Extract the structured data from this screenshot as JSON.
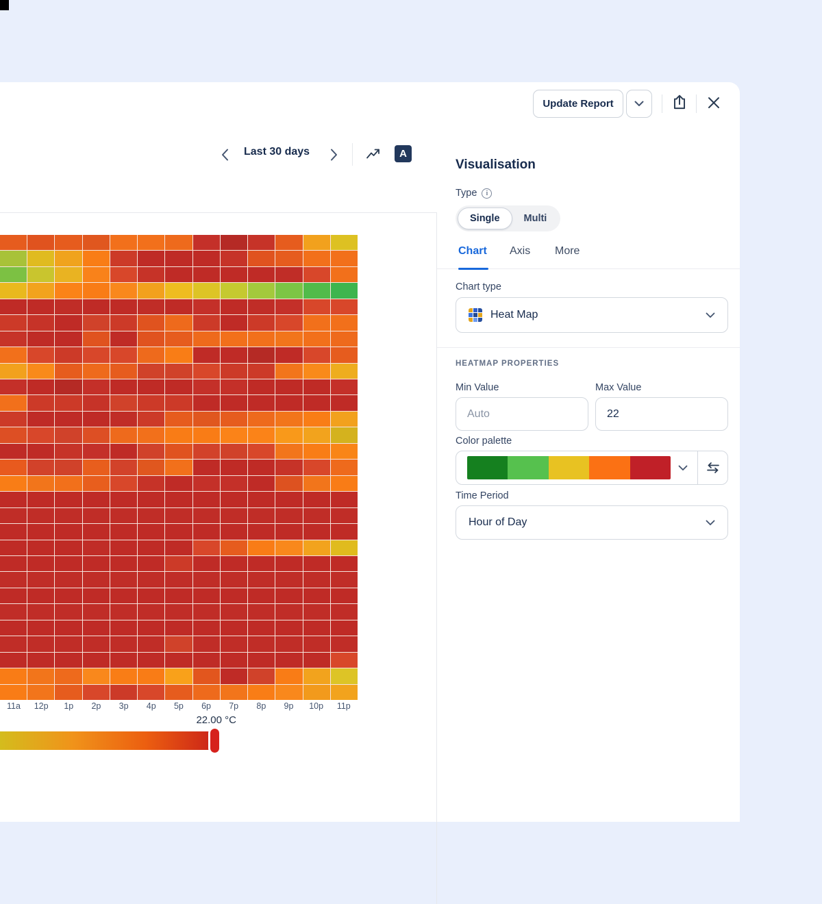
{
  "toolbar": {
    "update_report_label": "Update Report"
  },
  "chart_nav": {
    "range_label": "Last 30 days",
    "annotation_icon_letter": "A"
  },
  "panel": {
    "title": "Visualisation",
    "type_label": "Type",
    "info_icon_glyph": "i",
    "type_options": [
      "Single",
      "Multi"
    ],
    "type_selected": "Single",
    "tabs": [
      "Chart",
      "Axis",
      "More"
    ],
    "active_tab": "Chart",
    "chart_type_label": "Chart type",
    "chart_type_value": "Heat Map",
    "section_header": "HEATMAP PROPERTIES",
    "min_value_label": "Min Value",
    "min_value_placeholder": "Auto",
    "max_value_label": "Max Value",
    "max_value": "22",
    "color_palette_label": "Color palette",
    "palette_colors": [
      "#15801f",
      "#56c14e",
      "#e8c222",
      "#fb7114",
      "#c02028"
    ],
    "time_period_label": "Time Period",
    "time_period_value": "Hour of Day"
  },
  "accent_colors": {
    "tab_active_blue": "#1868db",
    "text_dark": "#172b4d",
    "text_secondary": "#44546f"
  },
  "chart_data": {
    "type": "heatmap",
    "x_labels": [
      "11a",
      "12p",
      "1p",
      "2p",
      "3p",
      "4p",
      "5p",
      "6p",
      "7p",
      "8p",
      "9p",
      "10p",
      "11p"
    ],
    "value_label": "22.00 °C",
    "legend_gradient": [
      "#d4bc1d",
      "#f0931a",
      "#ec5f10",
      "#c92019"
    ],
    "cell_colors": [
      [
        "#e65c1e",
        "#e0531f",
        "#e65c1e",
        "#e0571f",
        "#f2701b",
        "#f2701b",
        "#ee6a1c",
        "#c43029",
        "#b52a25",
        "#c63328",
        "#e65c1e",
        "#f2a11d",
        "#ddc122"
      ],
      [
        "#a8c239",
        "#e0bb20",
        "#f0a31d",
        "#f97d16",
        "#cc3a28",
        "#bf2b26",
        "#bf2b26",
        "#bf2b26",
        "#c63328",
        "#e0531f",
        "#e65c1e",
        "#f2701b",
        "#f2701b"
      ],
      [
        "#7cc143",
        "#c9c52e",
        "#e9b322",
        "#f9821a",
        "#d8472a",
        "#c63328",
        "#bf2b26",
        "#bf2b26",
        "#bf2b26",
        "#bf2b26",
        "#c02d27",
        "#d8472a",
        "#f2701b"
      ],
      [
        "#e9b91e",
        "#f2a31d",
        "#fb8318",
        "#f97c16",
        "#f9881c",
        "#f2a11d",
        "#eebd20",
        "#ddc426",
        "#c5c930",
        "#a3c93c",
        "#7cc545",
        "#52bb4a",
        "#3eb54e"
      ],
      [
        "#bf2b26",
        "#bf2b26",
        "#c02d27",
        "#bf2b26",
        "#bf2b26",
        "#c02d27",
        "#bf2b26",
        "#c43029",
        "#bf2b26",
        "#c02d27",
        "#c43029",
        "#d8472a",
        "#d8472a"
      ],
      [
        "#cc3a28",
        "#c63328",
        "#bf2b26",
        "#d0422a",
        "#cc3a28",
        "#e0531f",
        "#ee6a1c",
        "#cc3a28",
        "#bf2b26",
        "#cc3a28",
        "#d8472a",
        "#f2701b",
        "#f2701b"
      ],
      [
        "#c63328",
        "#bf2b26",
        "#bf2b26",
        "#e0531f",
        "#bf2b26",
        "#e0531f",
        "#e65c1e",
        "#ee6a1c",
        "#f2701b",
        "#f2701b",
        "#f2751b",
        "#f2701b",
        "#ee6a1c"
      ],
      [
        "#f2701b",
        "#d8472a",
        "#cc3a28",
        "#d8472a",
        "#d8472a",
        "#ee6a1c",
        "#f97d16",
        "#bf2b26",
        "#bf2b26",
        "#b52a25",
        "#bf2b26",
        "#d8472a",
        "#e65c1e"
      ],
      [
        "#f2a11d",
        "#f98a1a",
        "#e65c1e",
        "#ee6a1c",
        "#e65c1e",
        "#d0422a",
        "#d0422a",
        "#d8472a",
        "#cc3a28",
        "#cc3a28",
        "#f2751b",
        "#f98a1a",
        "#eead1e"
      ],
      [
        "#c43029",
        "#bf2b26",
        "#b52a25",
        "#c43029",
        "#bf2b26",
        "#bf2b26",
        "#bf2b26",
        "#c43029",
        "#c43029",
        "#bf2b26",
        "#bf2b26",
        "#bf2b26",
        "#c43029"
      ],
      [
        "#f2701b",
        "#cc3a28",
        "#cc3a28",
        "#c63328",
        "#d0422a",
        "#cc3a28",
        "#cc3a28",
        "#bf2b26",
        "#bf2b26",
        "#bf2b26",
        "#bf2b26",
        "#bf2b26",
        "#bf2b26"
      ],
      [
        "#cc3a28",
        "#bf2b26",
        "#bf2b26",
        "#bf2b26",
        "#c02d27",
        "#cc3a28",
        "#e65c1e",
        "#e0571f",
        "#e65c1e",
        "#ee6a1c",
        "#f2751b",
        "#f97d16",
        "#f2a11d"
      ],
      [
        "#dd4f24",
        "#d8472a",
        "#d0422a",
        "#dd4f24",
        "#ee6a1c",
        "#f2701b",
        "#f97c16",
        "#f97c16",
        "#fb8318",
        "#fb8318",
        "#f9991a",
        "#f2a31d",
        "#d4b21e"
      ],
      [
        "#bf2b26",
        "#bf2b26",
        "#c63328",
        "#c43029",
        "#bf2b26",
        "#d0422a",
        "#e0531f",
        "#d2422a",
        "#d0422a",
        "#d8472a",
        "#f2751b",
        "#f97d16",
        "#f98517"
      ],
      [
        "#e85a1e",
        "#d2422a",
        "#d0422a",
        "#e85e1d",
        "#d2422a",
        "#e0571f",
        "#f2701b",
        "#bf2b26",
        "#bf2b26",
        "#bf2b26",
        "#c63328",
        "#d8472a",
        "#ee6a1c"
      ],
      [
        "#f97d16",
        "#f2751b",
        "#f2701b",
        "#e85e1d",
        "#d8472a",
        "#c63328",
        "#bf2b26",
        "#c43029",
        "#c43029",
        "#bf2b26",
        "#dd5220",
        "#f2751b",
        "#f97c16"
      ],
      [
        "#bf2b26",
        "#bf2b26",
        "#bf2b26",
        "#bf2b26",
        "#bf2b26",
        "#bf2b26",
        "#bf2b26",
        "#bf2b26",
        "#bf2b26",
        "#bf2b26",
        "#bf2b26",
        "#bf2b26",
        "#bf2b26"
      ],
      [
        "#c02d27",
        "#c02d27",
        "#c02d27",
        "#c02d27",
        "#c02d27",
        "#c02d27",
        "#c02d27",
        "#c02d27",
        "#c02d27",
        "#c02d27",
        "#c02d27",
        "#c02d27",
        "#c02d27"
      ],
      [
        "#bf2b26",
        "#bf2b26",
        "#bf2b26",
        "#bf2b26",
        "#bf2b26",
        "#bf2b26",
        "#bf2b26",
        "#bf2b26",
        "#bf2b26",
        "#bf2b26",
        "#bf2b26",
        "#bf2b26",
        "#bf2b26"
      ],
      [
        "#bf2b26",
        "#bf2b26",
        "#bf2b26",
        "#c02d27",
        "#bf2b26",
        "#bf2b26",
        "#bf2b26",
        "#d8472a",
        "#e65c1e",
        "#f97c16",
        "#f9881c",
        "#f2a31d",
        "#e0bb1e"
      ],
      [
        "#bf2b26",
        "#bf2b26",
        "#bf2b26",
        "#bf2b26",
        "#bf2b26",
        "#bf2b26",
        "#cc3a28",
        "#bf2b26",
        "#bf2b26",
        "#bf2b26",
        "#bf2b26",
        "#bf2b26",
        "#bf2b26"
      ],
      [
        "#c02d27",
        "#c02d27",
        "#c02d27",
        "#c02d27",
        "#c02d27",
        "#c02d27",
        "#c02d27",
        "#c02d27",
        "#c02d27",
        "#c02d27",
        "#c02d27",
        "#c02d27",
        "#c02d27"
      ],
      [
        "#bf2b26",
        "#bf2b26",
        "#bf2b26",
        "#bf2b26",
        "#bf2b26",
        "#bf2b26",
        "#bf2b26",
        "#bf2b26",
        "#bf2b26",
        "#bf2b26",
        "#bf2b26",
        "#bf2b26",
        "#bf2b26"
      ],
      [
        "#c02d27",
        "#c02d27",
        "#c02d27",
        "#c02d27",
        "#c02d27",
        "#c02d27",
        "#c02d27",
        "#c02d27",
        "#c02d27",
        "#c02d27",
        "#c02d27",
        "#c02d27",
        "#c02d27"
      ],
      [
        "#bf2b26",
        "#bf2b26",
        "#bf2b26",
        "#bf2b26",
        "#bf2b26",
        "#bf2b26",
        "#bf2b26",
        "#bf2b26",
        "#bf2b26",
        "#bf2b26",
        "#bf2b26",
        "#bf2b26",
        "#bf2b26"
      ],
      [
        "#c02d27",
        "#c02d27",
        "#c02d27",
        "#c02d27",
        "#c02d27",
        "#c02d27",
        "#d0422a",
        "#c02d27",
        "#c02d27",
        "#c02d27",
        "#c02d27",
        "#c02d27",
        "#c02d27"
      ],
      [
        "#bf2b26",
        "#bf2b26",
        "#bf2b26",
        "#bf2b26",
        "#bf2b26",
        "#bf2b26",
        "#bf2b26",
        "#bf2b26",
        "#bf2b26",
        "#bf2b26",
        "#bf2b26",
        "#bf2b26",
        "#d8472a"
      ],
      [
        "#f97c16",
        "#f2751b",
        "#ee6a1c",
        "#f9881c",
        "#f97d16",
        "#f97c16",
        "#f9a11a",
        "#e2561e",
        "#bf2b26",
        "#d0422a",
        "#f97c16",
        "#f2a31d",
        "#ddc426"
      ],
      [
        "#f97c16",
        "#f2751b",
        "#e65c1e",
        "#d8472a",
        "#cc3a28",
        "#d8472a",
        "#e65c1e",
        "#ee6a1c",
        "#f2751b",
        "#f97d16",
        "#f9881c",
        "#f29a1c",
        "#f2a31d"
      ]
    ],
    "mini_icon_colors": [
      "#e2a51f",
      "#2f5fce",
      "#274f9e",
      "#3b74e0",
      "#24498f",
      "#e2a51f",
      "#e2a51f",
      "#6d9bf0",
      "#274f9e"
    ]
  }
}
